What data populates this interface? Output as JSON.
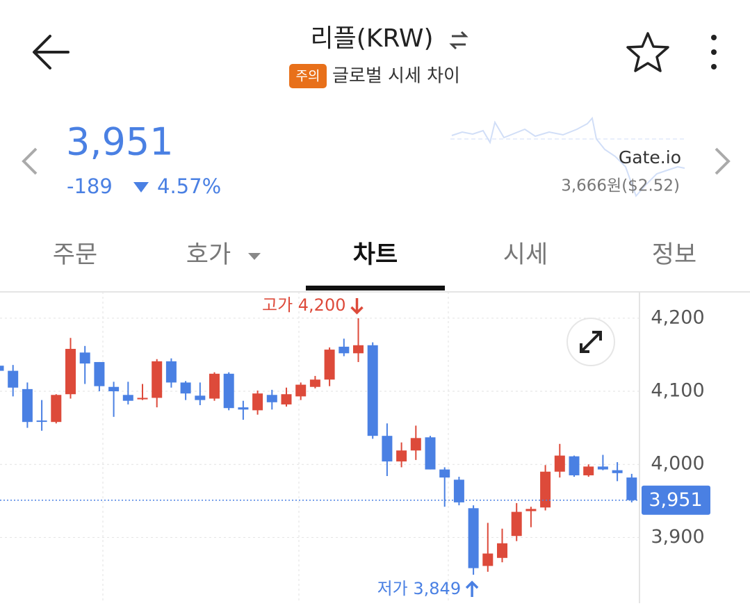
{
  "header": {
    "title": "리플(KRW)",
    "badge": "주의",
    "warning": "글로벌 시세 차이"
  },
  "price": {
    "current": "3,951",
    "change": "-189",
    "change_pct": "4.57%"
  },
  "compare": {
    "exchange": "Gate.io",
    "price": "3,666원($2.52)"
  },
  "tabs": {
    "items": [
      "주문",
      "호가",
      "차트",
      "시세",
      "정보"
    ],
    "active": 2
  },
  "chart_data": {
    "type": "candlestick",
    "up_color": "#dd4a3a",
    "down_color": "#4a80e3",
    "ylim": [
      3810,
      4236
    ],
    "yticks": [
      {
        "value": 3900,
        "label": "3,900"
      },
      {
        "value": 4000,
        "label": "4,000"
      },
      {
        "value": 4100,
        "label": "4,100"
      },
      {
        "value": 4200,
        "label": "4,200"
      }
    ],
    "grid": true,
    "current_price": {
      "value": 3951,
      "label": "3,951"
    },
    "annotations": [
      {
        "text": "고가 4,200",
        "value": 4200,
        "kind": "high"
      },
      {
        "text": "저가 3,849",
        "value": 3849,
        "kind": "low"
      }
    ],
    "open": [
      4135,
      4128,
      4103,
      4060,
      4058,
      4096,
      4153,
      4140,
      4106,
      4095,
      4089,
      4091,
      4141,
      4112,
      4094,
      4090,
      4124,
      4078,
      4074,
      4095,
      4082,
      4093,
      4106,
      4116,
      4161,
      4152,
      4163,
      4039,
      4004,
      4019,
      4037,
      3993,
      3979,
      3940,
      3861,
      3872,
      3902,
      3936,
      3941,
      3990,
      4011,
      3985,
      3997,
      3992,
      3982
    ],
    "high": [
      4137,
      4136,
      4112,
      4088,
      4096,
      4173,
      4162,
      4140,
      4113,
      4113,
      4110,
      4144,
      4145,
      4114,
      4112,
      4126,
      4126,
      4087,
      4101,
      4102,
      4105,
      4112,
      4121,
      4160,
      4172,
      4200,
      4167,
      4056,
      4030,
      4053,
      4039,
      3996,
      3983,
      3944,
      3920,
      3912,
      3947,
      3942,
      3999,
      4028,
      4012,
      4000,
      4013,
      4003,
      3987
    ],
    "low": [
      4127,
      4093,
      4050,
      4046,
      4056,
      4090,
      4110,
      4100,
      4065,
      4082,
      4088,
      4078,
      4105,
      4088,
      4081,
      4087,
      4074,
      4061,
      4068,
      4075,
      4079,
      4088,
      4104,
      4107,
      4148,
      4140,
      4035,
      3984,
      3996,
      4006,
      3993,
      3942,
      3944,
      3849,
      3853,
      3866,
      3895,
      3914,
      3937,
      3982,
      3983,
      3983,
      3992,
      3977,
      3948
    ],
    "close": [
      4128,
      4105,
      4058,
      4059,
      4095,
      4158,
      4138,
      4107,
      4100,
      4087,
      4091,
      4141,
      4112,
      4097,
      4088,
      4124,
      4077,
      4075,
      4097,
      4085,
      4096,
      4109,
      4116,
      4157,
      4152,
      4163,
      4039,
      4004,
      4019,
      4036,
      3993,
      3982,
      3948,
      3858,
      3878,
      3892,
      3935,
      3939,
      3990,
      4012,
      3985,
      3997,
      3993,
      3988,
      3951
    ]
  }
}
